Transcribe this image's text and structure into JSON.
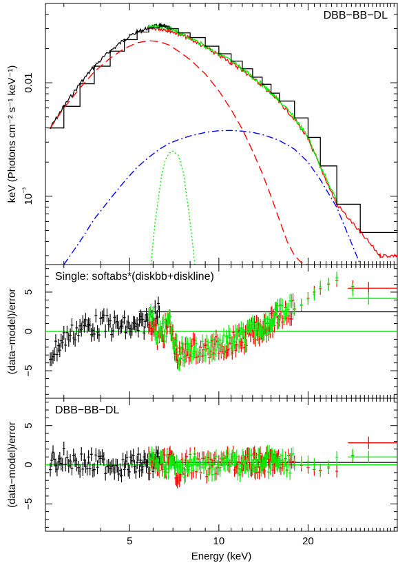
{
  "chart_data": [
    {
      "type": "line",
      "panel": "spectrum",
      "label": "DBB−BB−DL",
      "ylabel": "keV (Photons cm⁻² s⁻¹ keV⁻¹)",
      "y_scale": "log",
      "xlim": [
        2.6,
        40
      ],
      "ylim": [
        0.00025,
        0.05
      ],
      "x_scale": "log",
      "yticks": [
        {
          "v": 0.01,
          "label": "0.01"
        },
        {
          "v": 0.001,
          "label": "10⁻³"
        }
      ],
      "series": [
        {
          "role": "data",
          "color": "#000000",
          "x": [
            2.7,
            3.0,
            3.4,
            3.8,
            4.3,
            4.8,
            5.3,
            5.8,
            6.3,
            6.6,
            6.9
          ],
          "y": [
            0.004,
            0.0062,
            0.0098,
            0.014,
            0.019,
            0.024,
            0.028,
            0.0305,
            0.032,
            0.031,
            0.03
          ]
        },
        {
          "role": "data",
          "color": "#ff0000",
          "x": [
            5.8,
            6.3,
            6.8,
            7.3,
            8,
            9,
            10,
            11,
            12,
            13,
            14,
            15,
            16,
            18,
            20,
            22,
            25,
            30,
            35,
            40
          ],
          "y": [
            0.03,
            0.03,
            0.029,
            0.027,
            0.0245,
            0.0205,
            0.0175,
            0.015,
            0.013,
            0.011,
            0.0095,
            0.008,
            0.0068,
            0.0048,
            0.0032,
            0.0018,
            0.00085,
            0.00048,
            0.0003,
            0.0003
          ]
        },
        {
          "role": "data",
          "color": "#00ee00",
          "x": [
            5.8,
            6.3,
            6.8,
            7.3,
            8,
            9,
            10,
            11,
            12,
            13,
            14,
            15,
            16,
            18,
            20,
            22,
            25
          ],
          "y": [
            0.031,
            0.031,
            0.03,
            0.0275,
            0.025,
            0.021,
            0.018,
            0.0155,
            0.0133,
            0.0112,
            0.0097,
            0.0081,
            0.0069,
            0.0049,
            0.0033,
            0.00185,
            0.0009
          ]
        },
        {
          "role": "model",
          "color": "#000000",
          "x": [
            2.7,
            3.0,
            3.4,
            3.8,
            4.3,
            4.8,
            5.3,
            5.8,
            6.3,
            6.8,
            7.3,
            8,
            9,
            10,
            11,
            12,
            13,
            14,
            15,
            16,
            18,
            20,
            22,
            25,
            30,
            40
          ],
          "y": [
            0.004,
            0.0062,
            0.0098,
            0.014,
            0.019,
            0.024,
            0.028,
            0.0305,
            0.0315,
            0.03,
            0.0275,
            0.025,
            0.021,
            0.018,
            0.0155,
            0.0133,
            0.0112,
            0.0097,
            0.0081,
            0.0069,
            0.0049,
            0.0033,
            0.00185,
            0.00085,
            0.00048,
            0.00048
          ]
        },
        {
          "role": "model-component",
          "color": "#ff0000",
          "style": "dashed",
          "x": [
            2.7,
            3.0,
            3.4,
            3.8,
            4.3,
            4.8,
            5.3,
            5.8,
            6.3,
            6.8,
            7.3,
            8,
            9,
            10,
            11,
            12,
            13,
            14,
            15,
            16,
            17,
            18,
            19,
            20
          ],
          "y": [
            0.004,
            0.006,
            0.009,
            0.0125,
            0.0165,
            0.02,
            0.0225,
            0.0235,
            0.023,
            0.0215,
            0.019,
            0.016,
            0.012,
            0.0085,
            0.0058,
            0.0039,
            0.0025,
            0.0016,
            0.001,
            0.00062,
            0.0004,
            0.0003,
            0.00026,
            0.00025
          ]
        },
        {
          "role": "model-component",
          "color": "#0000ff",
          "style": "dashdot",
          "x": [
            3.0,
            3.4,
            3.8,
            4.3,
            4.8,
            5.3,
            5.8,
            6.3,
            6.8,
            7.3,
            8,
            9,
            10,
            11,
            12,
            13,
            14,
            15,
            16,
            18,
            20,
            22,
            25,
            30
          ],
          "y": [
            0.00025,
            0.0004,
            0.00063,
            0.00095,
            0.00135,
            0.0018,
            0.0022,
            0.0026,
            0.00292,
            0.00315,
            0.0034,
            0.00365,
            0.00378,
            0.0038,
            0.00375,
            0.00365,
            0.0035,
            0.0033,
            0.0031,
            0.0026,
            0.002,
            0.0014,
            0.0008,
            0.00025
          ]
        },
        {
          "role": "model-component",
          "color": "#00ee00",
          "style": "dotted",
          "x": [
            5.9,
            6.1,
            6.4,
            6.6,
            6.8,
            7.0,
            7.3,
            7.6,
            8.0,
            8.3
          ],
          "y": [
            0.00025,
            0.0006,
            0.0015,
            0.0021,
            0.0024,
            0.0025,
            0.0023,
            0.0016,
            0.0006,
            0.00025
          ]
        }
      ]
    },
    {
      "type": "scatter",
      "panel": "residuals-single",
      "label": "Single: softabs*(diskbb+diskline)",
      "ylabel": "(data−model)/error",
      "xlim": [
        2.6,
        40
      ],
      "ylim": [
        -8.5,
        8.5
      ],
      "yticks": [
        {
          "v": 5,
          "label": "5"
        },
        {
          "v": 0,
          "label": "0"
        },
        {
          "v": -5,
          "label": "−5"
        }
      ],
      "series": [
        {
          "color": "#000000",
          "x": [
            2.7,
            3.0,
            3.4,
            3.8,
            4.3,
            4.8,
            5.3,
            5.8,
            6.3
          ],
          "y": [
            -3.0,
            -1.0,
            0.5,
            0.8,
            0.8,
            0.6,
            0.3,
            1.5,
            2.5
          ]
        },
        {
          "color": "#ff0000",
          "x": [
            5.8,
            6.3,
            6.8,
            7.3,
            8,
            9,
            10,
            11,
            12,
            13,
            14,
            15,
            16,
            18,
            20,
            22,
            25,
            32
          ],
          "y": [
            1.5,
            -1.0,
            1.0,
            -3.5,
            -2.0,
            -2.5,
            -1.8,
            -1.5,
            -1.0,
            -0.3,
            0.5,
            1.0,
            2.0,
            3.0,
            4.0,
            5.5,
            6.5,
            5.5
          ]
        },
        {
          "color": "#00ee00",
          "x": [
            5.8,
            6.3,
            6.8,
            7.3,
            8,
            9,
            10,
            11,
            12,
            13,
            14,
            15,
            16,
            18,
            20,
            22,
            25,
            32
          ],
          "y": [
            2.0,
            -0.5,
            1.0,
            -3.0,
            -2.2,
            -2.3,
            -1.5,
            -1.3,
            -0.8,
            0.0,
            0.7,
            1.2,
            2.3,
            3.2,
            3.8,
            5.6,
            6.6,
            4.2
          ]
        }
      ]
    },
    {
      "type": "scatter",
      "panel": "residuals-dbb-bb-dl",
      "label": "DBB−BB−DL",
      "ylabel": "(data−model)/error",
      "xlabel": "Energy (keV)",
      "xlim": [
        2.6,
        40
      ],
      "ylim": [
        -8.5,
        8.5
      ],
      "yticks": [
        {
          "v": 5,
          "label": "5"
        },
        {
          "v": 0,
          "label": "0"
        },
        {
          "v": -5,
          "label": "−5"
        }
      ],
      "xticks": [
        {
          "v": 5,
          "label": "5"
        },
        {
          "v": 10,
          "label": "10"
        },
        {
          "v": 20,
          "label": "20"
        }
      ],
      "series": [
        {
          "color": "#000000",
          "x": [
            2.7,
            3.0,
            3.4,
            3.8,
            4.3,
            4.8,
            5.3,
            5.8,
            6.3
          ],
          "y": [
            0.5,
            0.8,
            0.3,
            0.0,
            0.2,
            -0.2,
            0.1,
            0.0,
            0.3
          ]
        },
        {
          "color": "#ff0000",
          "x": [
            5.8,
            6.3,
            6.8,
            7.3,
            8,
            9,
            10,
            11,
            12,
            13,
            14,
            15,
            16,
            18,
            20,
            22,
            25,
            32
          ],
          "y": [
            0.2,
            -0.3,
            0.5,
            -1.0,
            0.3,
            -0.5,
            0.2,
            0.4,
            -0.2,
            0.3,
            0.1,
            0.5,
            0.0,
            0.3,
            0.0,
            -0.8,
            -0.5,
            2.8
          ]
        },
        {
          "color": "#00ee00",
          "x": [
            5.8,
            6.3,
            6.8,
            7.3,
            8,
            9,
            10,
            11,
            12,
            13,
            14,
            15,
            16,
            18,
            20,
            22,
            25,
            32
          ],
          "y": [
            0.5,
            0.0,
            0.3,
            -0.8,
            0.2,
            -0.4,
            0.3,
            0.2,
            -0.1,
            0.2,
            0.3,
            0.4,
            -0.2,
            0.2,
            0.1,
            -0.6,
            0.8,
            1.0
          ]
        }
      ]
    }
  ]
}
